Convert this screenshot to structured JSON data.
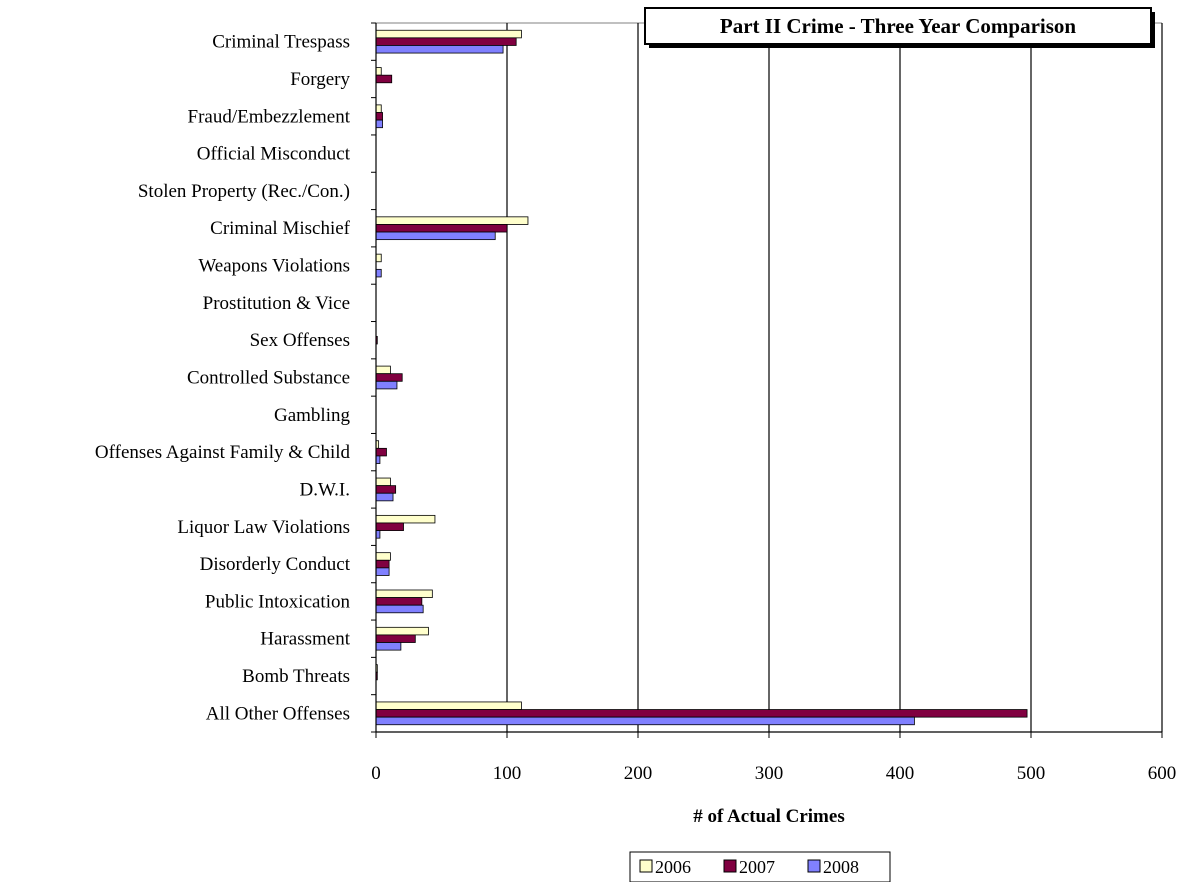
{
  "chart_data": {
    "type": "bar",
    "orientation": "horizontal",
    "title": "Part II Crime - Three Year Comparison",
    "xlabel": "# of Actual Crimes",
    "ylabel": "",
    "xlim": [
      0,
      600
    ],
    "x_ticks": [
      0,
      100,
      200,
      300,
      400,
      500,
      600
    ],
    "grid": "vertical",
    "legend_position": "bottom",
    "categories": [
      "Criminal Trespass",
      "Forgery",
      "Fraud/Embezzlement",
      "Official Misconduct",
      "Stolen Property (Rec./Con.)",
      "Criminal Mischief",
      "Weapons Violations",
      "Prostitution & Vice",
      "Sex Offenses",
      "Controlled Substance",
      "Gambling",
      "Offenses Against Family & Child",
      "D.W.I.",
      "Liquor Law Violations",
      "Disorderly Conduct",
      "Public Intoxication",
      "Harassment",
      "Bomb Threats",
      "All Other Offenses"
    ],
    "series": [
      {
        "name": "2006",
        "color": "#ffffcc",
        "values": [
          111,
          4,
          4,
          0,
          0,
          116,
          4,
          0,
          0,
          11,
          0,
          2,
          11,
          45,
          11,
          43,
          40,
          1,
          111
        ]
      },
      {
        "name": "2007",
        "color": "#800040",
        "values": [
          107,
          12,
          5,
          0,
          0,
          100,
          0,
          0,
          1,
          20,
          0,
          8,
          15,
          21,
          10,
          35,
          30,
          1,
          497
        ]
      },
      {
        "name": "2008",
        "color": "#8080ff",
        "values": [
          97,
          0,
          5,
          0,
          0,
          91,
          4,
          0,
          0,
          16,
          0,
          3,
          13,
          3,
          10,
          36,
          19,
          0,
          411
        ]
      }
    ]
  }
}
